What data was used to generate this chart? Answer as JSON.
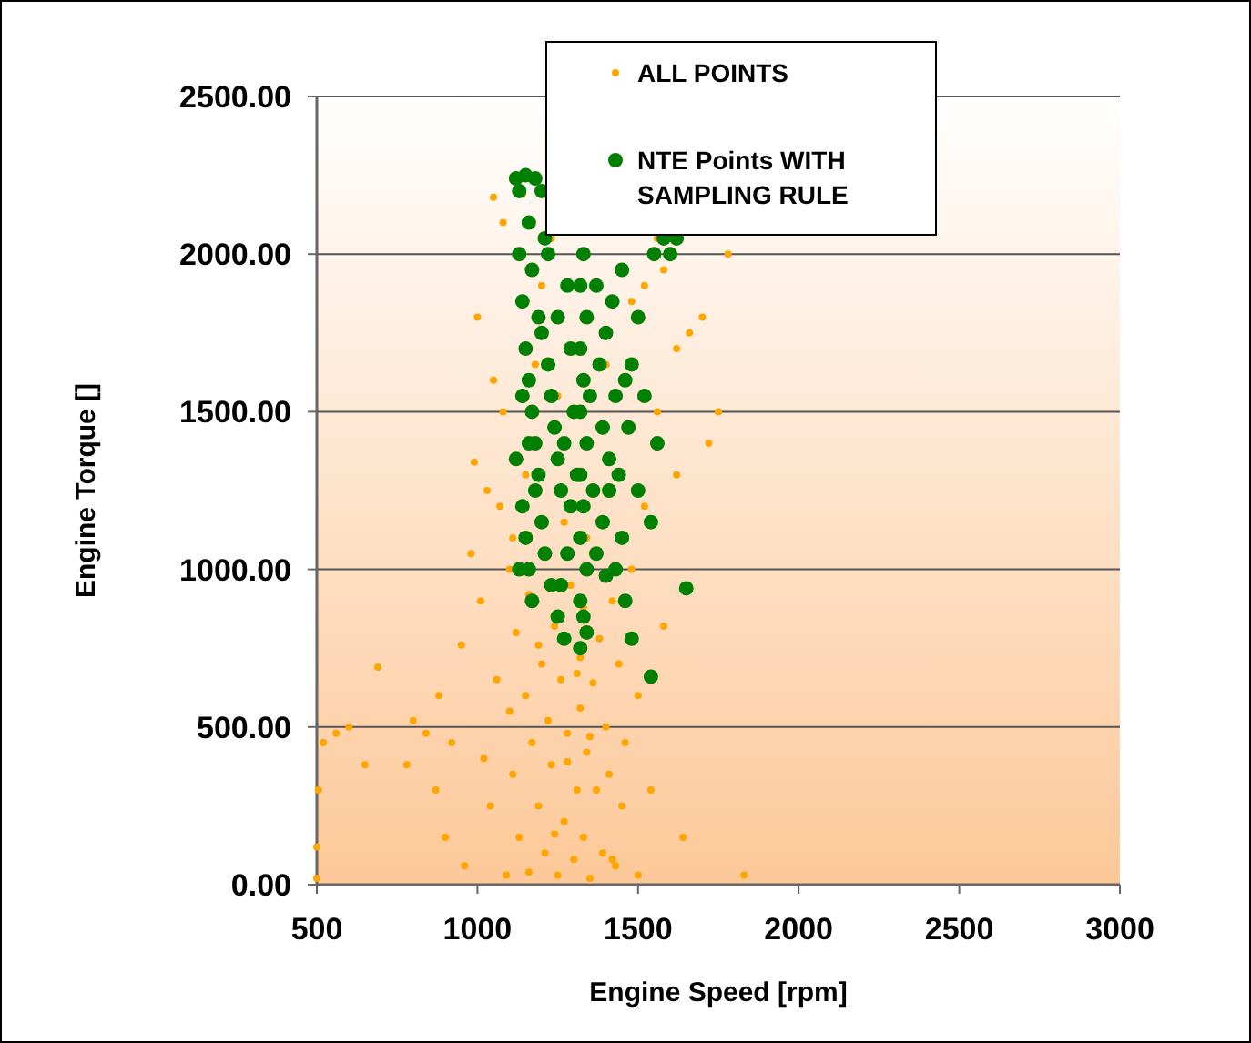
{
  "chart_data": {
    "type": "scatter",
    "xlabel": "Engine Speed [rpm]",
    "ylabel": "Engine Torque []",
    "xlim": [
      500,
      3000
    ],
    "xticks": [
      500,
      1000,
      1500,
      2000,
      2500,
      3000
    ],
    "ylim": [
      0,
      2500
    ],
    "yticks": [
      {
        "value": 0,
        "label": "0.00"
      },
      {
        "value": 500,
        "label": "500.00"
      },
      {
        "value": 1000,
        "label": "1000.00"
      },
      {
        "value": 1500,
        "label": "1500.00"
      },
      {
        "value": 2000,
        "label": "2000.00"
      },
      {
        "value": 2500,
        "label": "2500.00"
      }
    ],
    "grid": "y",
    "legend": "top right",
    "marker": "circle",
    "series": [
      {
        "name": "ALL POINTS",
        "color": "#ffa500",
        "x": [
          500,
          500,
          505,
          520,
          560,
          600,
          650,
          690,
          780,
          800,
          840,
          870,
          880,
          900,
          920,
          950,
          960,
          980,
          990,
          1000,
          1010,
          1020,
          1040,
          1050,
          1060,
          1070,
          1080,
          1090,
          1100,
          1100,
          1110,
          1120,
          1130,
          1140,
          1150,
          1160,
          1170,
          1190,
          1200,
          1210,
          1220,
          1230,
          1240,
          1250,
          1260,
          1270,
          1280,
          1290,
          1300,
          1310,
          1320,
          1320,
          1330,
          1330,
          1340,
          1350,
          1360,
          1370,
          1380,
          1390,
          1400,
          1410,
          1420,
          1430,
          1440,
          1450,
          1460,
          1480,
          1500,
          1500,
          1520,
          1540,
          1560,
          1580,
          1620,
          1640,
          1660,
          1700,
          1720,
          1750,
          1780,
          1830,
          1150,
          1180,
          1200,
          1230,
          1250,
          1400,
          1480,
          1520,
          1560,
          1110,
          1080,
          1050,
          1030,
          1270,
          1340,
          1280,
          1310,
          1240,
          1350,
          1190,
          1160,
          1420,
          1580,
          1620
        ],
        "values": [
          20,
          120,
          300,
          450,
          480,
          500,
          380,
          690,
          380,
          520,
          480,
          300,
          600,
          150,
          450,
          760,
          60,
          1050,
          1340,
          1800,
          900,
          400,
          250,
          2180,
          650,
          1200,
          2100,
          30,
          550,
          1000,
          350,
          800,
          150,
          2190,
          600,
          40,
          450,
          250,
          700,
          100,
          520,
          380,
          820,
          30,
          650,
          200,
          480,
          950,
          80,
          300,
          560,
          720,
          150,
          880,
          420,
          20,
          640,
          300,
          780,
          100,
          500,
          350,
          900,
          60,
          700,
          250,
          450,
          1000,
          30,
          600,
          1200,
          300,
          1500,
          820,
          1300,
          150,
          1750,
          1800,
          1400,
          1500,
          2000,
          30,
          1300,
          1650,
          1900,
          2050,
          1550,
          1650,
          1850,
          1900,
          2050,
          1100,
          1500,
          1600,
          1250,
          1150,
          1100,
          390,
          670,
          160,
          470,
          760,
          920,
          80,
          1950,
          1700
        ]
      },
      {
        "name": "NTE Points WITH SAMPLING RULE",
        "color": "#008000",
        "x": [
          1120,
          1130,
          1150,
          1160,
          1170,
          1180,
          1200,
          1210,
          1220,
          1130,
          1140,
          1150,
          1160,
          1170,
          1180,
          1190,
          1140,
          1150,
          1160,
          1170,
          1200,
          1220,
          1230,
          1240,
          1250,
          1260,
          1200,
          1210,
          1230,
          1250,
          1270,
          1280,
          1290,
          1300,
          1310,
          1320,
          1320,
          1320,
          1320,
          1320,
          1320,
          1320,
          1330,
          1330,
          1330,
          1330,
          1340,
          1340,
          1340,
          1340,
          1350,
          1360,
          1370,
          1380,
          1390,
          1390,
          1400,
          1400,
          1410,
          1420,
          1430,
          1440,
          1450,
          1460,
          1470,
          1480,
          1500,
          1500,
          1520,
          1540,
          1550,
          1560,
          1580,
          1600,
          1620,
          1650,
          1540,
          1480,
          1430,
          1280,
          1270,
          1250,
          1190,
          1180,
          1160,
          1140,
          1130,
          1120,
          1450,
          1460,
          1410,
          1370,
          1290,
          1260
        ],
        "values": [
          2240,
          2200,
          2250,
          2100,
          1950,
          2240,
          2200,
          2050,
          2000,
          2000,
          1850,
          1700,
          1600,
          1500,
          1400,
          1300,
          1200,
          1100,
          1000,
          900,
          1750,
          1650,
          1550,
          1450,
          1350,
          1250,
          1150,
          1050,
          950,
          850,
          780,
          1900,
          1700,
          1500,
          1300,
          1900,
          1700,
          1500,
          1300,
          1100,
          900,
          750,
          2000,
          1600,
          1200,
          850,
          1800,
          1400,
          1000,
          800,
          1550,
          1250,
          1900,
          1650,
          1450,
          1150,
          980,
          1750,
          1350,
          1850,
          1550,
          1300,
          1100,
          900,
          1450,
          1650,
          1800,
          1250,
          1550,
          1150,
          2000,
          1400,
          2050,
          2000,
          2050,
          940,
          660,
          780,
          1000,
          1050,
          1400,
          1800,
          1800,
          1250,
          1400,
          1550,
          1000,
          1350,
          1950,
          1600,
          1250,
          1050,
          1200,
          950
        ]
      }
    ]
  }
}
